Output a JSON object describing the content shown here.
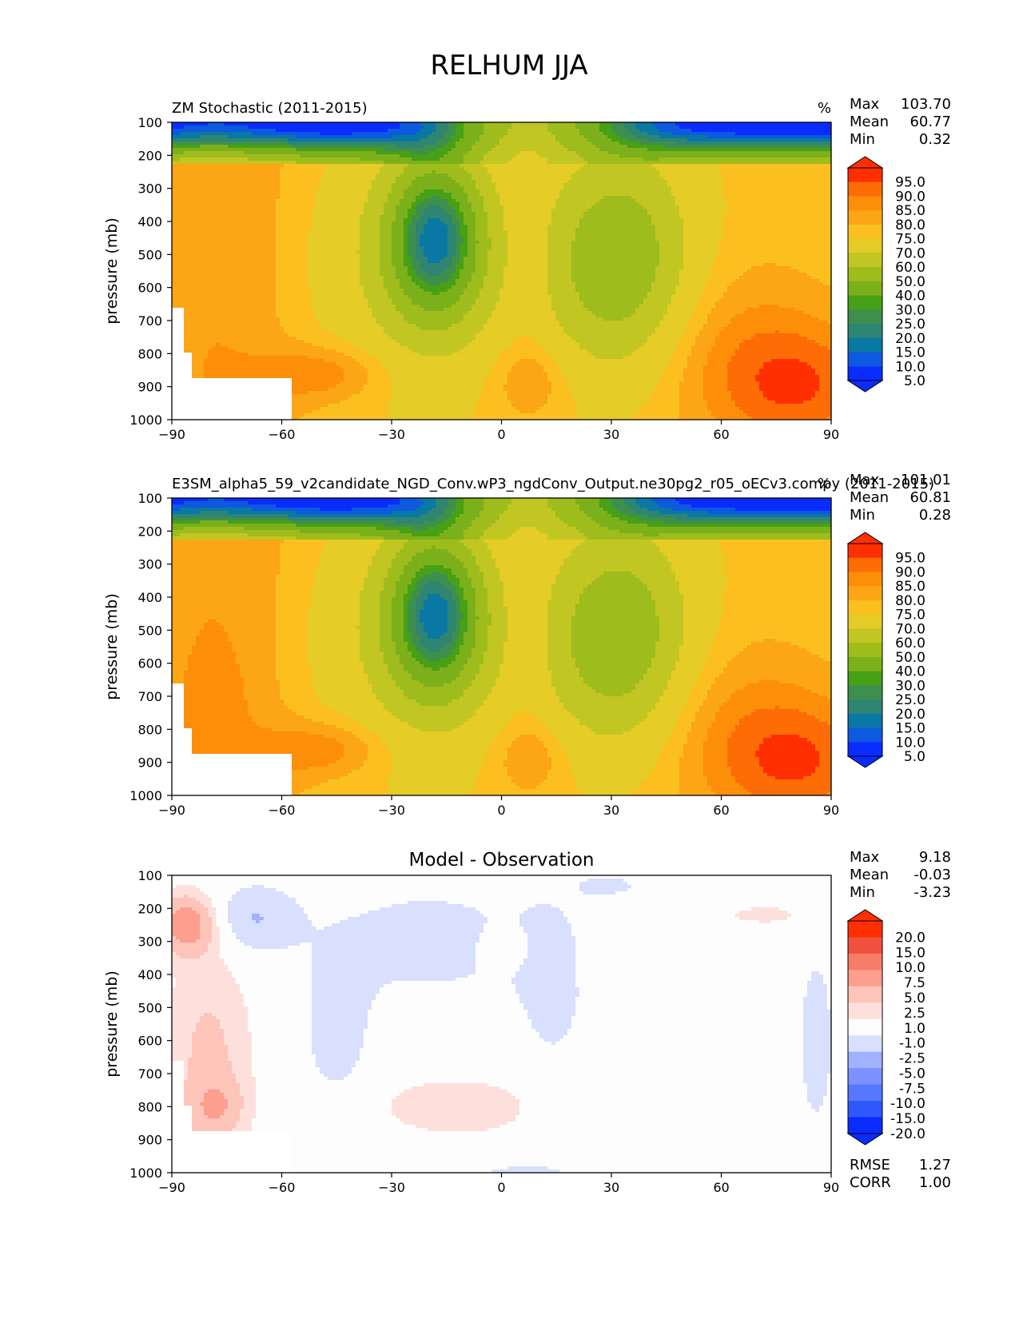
{
  "figure_title": "RELHUM JJA",
  "colors": {
    "main_levels": [
      "#0b2cff",
      "#0d59e0",
      "#0a78a4",
      "#2e8572",
      "#3e8f4e",
      "#47a016",
      "#7cb01a",
      "#9fbc1d",
      "#c2c622",
      "#e5cc26",
      "#fbc020",
      "#fca515",
      "#fd8e0a",
      "#fd6c05",
      "#ff2f01"
    ],
    "diff_levels": [
      "#0b2cff",
      "#2e57ff",
      "#5677ff",
      "#7b91ff",
      "#a0b2ff",
      "#d8e0fe",
      "#fdfdfd",
      "#fde0dc",
      "#fdc4ba",
      "#fd9e8e",
      "#f87c69",
      "#f0503f",
      "#ff2f01"
    ]
  },
  "chart_data": [
    {
      "type": "contour",
      "title": "ZM Stochastic (2011-2015)",
      "units": "%",
      "ylabel": "pressure (mb)",
      "xlabel": "",
      "xticks": [
        -90,
        -60,
        -30,
        0,
        30,
        60,
        90
      ],
      "yticks": [
        100,
        200,
        300,
        400,
        500,
        600,
        700,
        800,
        900,
        1000
      ],
      "xlim": [
        -90,
        90
      ],
      "ylim": [
        1000,
        100
      ],
      "stats": [
        {
          "label": "Max",
          "value": "103.70"
        },
        {
          "label": "Mean",
          "value": "60.77"
        },
        {
          "label": "Min",
          "value": "0.32"
        }
      ],
      "colorbar_levels": [
        "95.0",
        "90.0",
        "85.0",
        "80.0",
        "75.0",
        "70.0",
        "60.0",
        "50.0",
        "40.0",
        "30.0",
        "25.0",
        "20.0",
        "15.0",
        "10.0",
        "5.0"
      ],
      "colorbar_extend": "both"
    },
    {
      "type": "contour",
      "title": "E3SM_alpha5_59_v2candidate_NGD_Conv.wP3_ngdConv_Output.ne30pg2_r05_oECv3.compy (2011-2015)",
      "units": "%",
      "ylabel": "pressure (mb)",
      "xlabel": "",
      "xticks": [
        -90,
        -60,
        -30,
        0,
        30,
        60,
        90
      ],
      "yticks": [
        100,
        200,
        300,
        400,
        500,
        600,
        700,
        800,
        900,
        1000
      ],
      "xlim": [
        -90,
        90
      ],
      "ylim": [
        1000,
        100
      ],
      "stats": [
        {
          "label": "Max",
          "value": "101.01"
        },
        {
          "label": "Mean",
          "value": "60.81"
        },
        {
          "label": "Min",
          "value": "0.28"
        }
      ],
      "colorbar_levels": [
        "95.0",
        "90.0",
        "85.0",
        "80.0",
        "75.0",
        "70.0",
        "60.0",
        "50.0",
        "40.0",
        "30.0",
        "25.0",
        "20.0",
        "15.0",
        "10.0",
        "5.0"
      ],
      "colorbar_extend": "both"
    },
    {
      "type": "contour",
      "title": "Model - Observation",
      "units": "",
      "ylabel": "pressure (mb)",
      "xlabel": "",
      "xticks": [
        -90,
        -60,
        -30,
        0,
        30,
        60,
        90
      ],
      "yticks": [
        100,
        200,
        300,
        400,
        500,
        600,
        700,
        800,
        900,
        1000
      ],
      "xlim": [
        -90,
        90
      ],
      "ylim": [
        1000,
        100
      ],
      "stats": [
        {
          "label": "Max",
          "value": "9.18"
        },
        {
          "label": "Mean",
          "value": "-0.03"
        },
        {
          "label": "Min",
          "value": "-3.23"
        }
      ],
      "colorbar_levels": [
        "20.0",
        "15.0",
        "10.0",
        "7.5",
        "5.0",
        "2.5",
        "1.0",
        "-1.0",
        "-2.5",
        "-5.0",
        "-7.5",
        "-10.0",
        "-15.0",
        "-20.0"
      ],
      "colorbar_extend": "both",
      "metrics": [
        {
          "label": "RMSE",
          "value": "1.27"
        },
        {
          "label": "CORR",
          "value": "1.00"
        }
      ]
    }
  ]
}
